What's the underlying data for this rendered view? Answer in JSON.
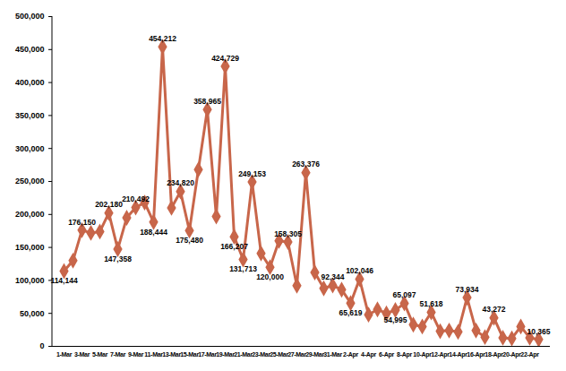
{
  "chart_data": {
    "type": "line",
    "categories": [
      "1-Mar",
      null,
      "3-Mar",
      null,
      "5-Mar",
      null,
      "7-Mar",
      null,
      "9-Mar",
      null,
      "11-Mar",
      null,
      "13-Mar",
      null,
      "15-Mar",
      null,
      "17-Mar",
      null,
      "19-Mar",
      null,
      "21-Mar",
      null,
      "23-Mar",
      null,
      "25-Mar",
      null,
      "27-Mar",
      null,
      "29-Mar",
      null,
      "31-Mar",
      null,
      "2-Apr",
      null,
      "4-Apr",
      null,
      "6-Apr",
      null,
      "8-Apr",
      null,
      "10-Apr",
      null,
      "12-Apr",
      null,
      "14-Apr",
      null,
      "16-Apr",
      null,
      "18-Apr",
      null,
      "20-Apr",
      null,
      "22-Apr",
      null
    ],
    "values": [
      114144,
      130000,
      176150,
      172000,
      174000,
      202180,
      147358,
      195000,
      210492,
      218000,
      188444,
      454212,
      210000,
      234820,
      175480,
      268000,
      358965,
      197000,
      424729,
      166207,
      131713,
      249153,
      141000,
      120000,
      160000,
      158305,
      92000,
      263376,
      112000,
      88000,
      92344,
      86000,
      65619,
      102046,
      48000,
      56000,
      50000,
      54995,
      65097,
      33000,
      30000,
      51618,
      23000,
      24000,
      22000,
      73934,
      24000,
      14000,
      43272,
      13000,
      12000,
      30000,
      13000,
      10365
    ],
    "value_labels": [
      "114,144",
      null,
      "176,150",
      null,
      null,
      "202,180",
      "147,358",
      null,
      "210,492",
      null,
      "188,444",
      "454,212",
      null,
      "234,820",
      "175,480",
      null,
      "358,965",
      null,
      "424,729",
      "166,207",
      "131,713",
      "249,153",
      null,
      "120,000",
      null,
      "158,305",
      null,
      "263,376",
      null,
      null,
      "92,344",
      null,
      "65,619",
      "102,046",
      null,
      null,
      null,
      "54,995",
      "65,097",
      null,
      null,
      "51,618",
      null,
      null,
      null,
      "73,934",
      null,
      null,
      "43,272",
      null,
      null,
      null,
      null,
      "10,365"
    ],
    "color": "#c8664a",
    "marker": "diamond",
    "data_labels": true,
    "grid": false,
    "ylim": [
      0,
      500000
    ],
    "yticks": [
      0,
      {
        "value": 50000,
        "label": "50,000"
      },
      {
        "value": 100000,
        "label": "100,000"
      },
      {
        "value": 150000,
        "label": "150,000"
      },
      {
        "value": 200000,
        "label": "200,000"
      },
      {
        "value": 250000,
        "label": "250,000"
      },
      {
        "value": 300000,
        "label": "300,000"
      },
      {
        "value": 350000,
        "label": "350,000"
      },
      {
        "value": 400000,
        "label": "400,000"
      },
      {
        "value": 450000,
        "label": "450,000"
      },
      {
        "value": 500000,
        "label": "500,000"
      }
    ]
  }
}
